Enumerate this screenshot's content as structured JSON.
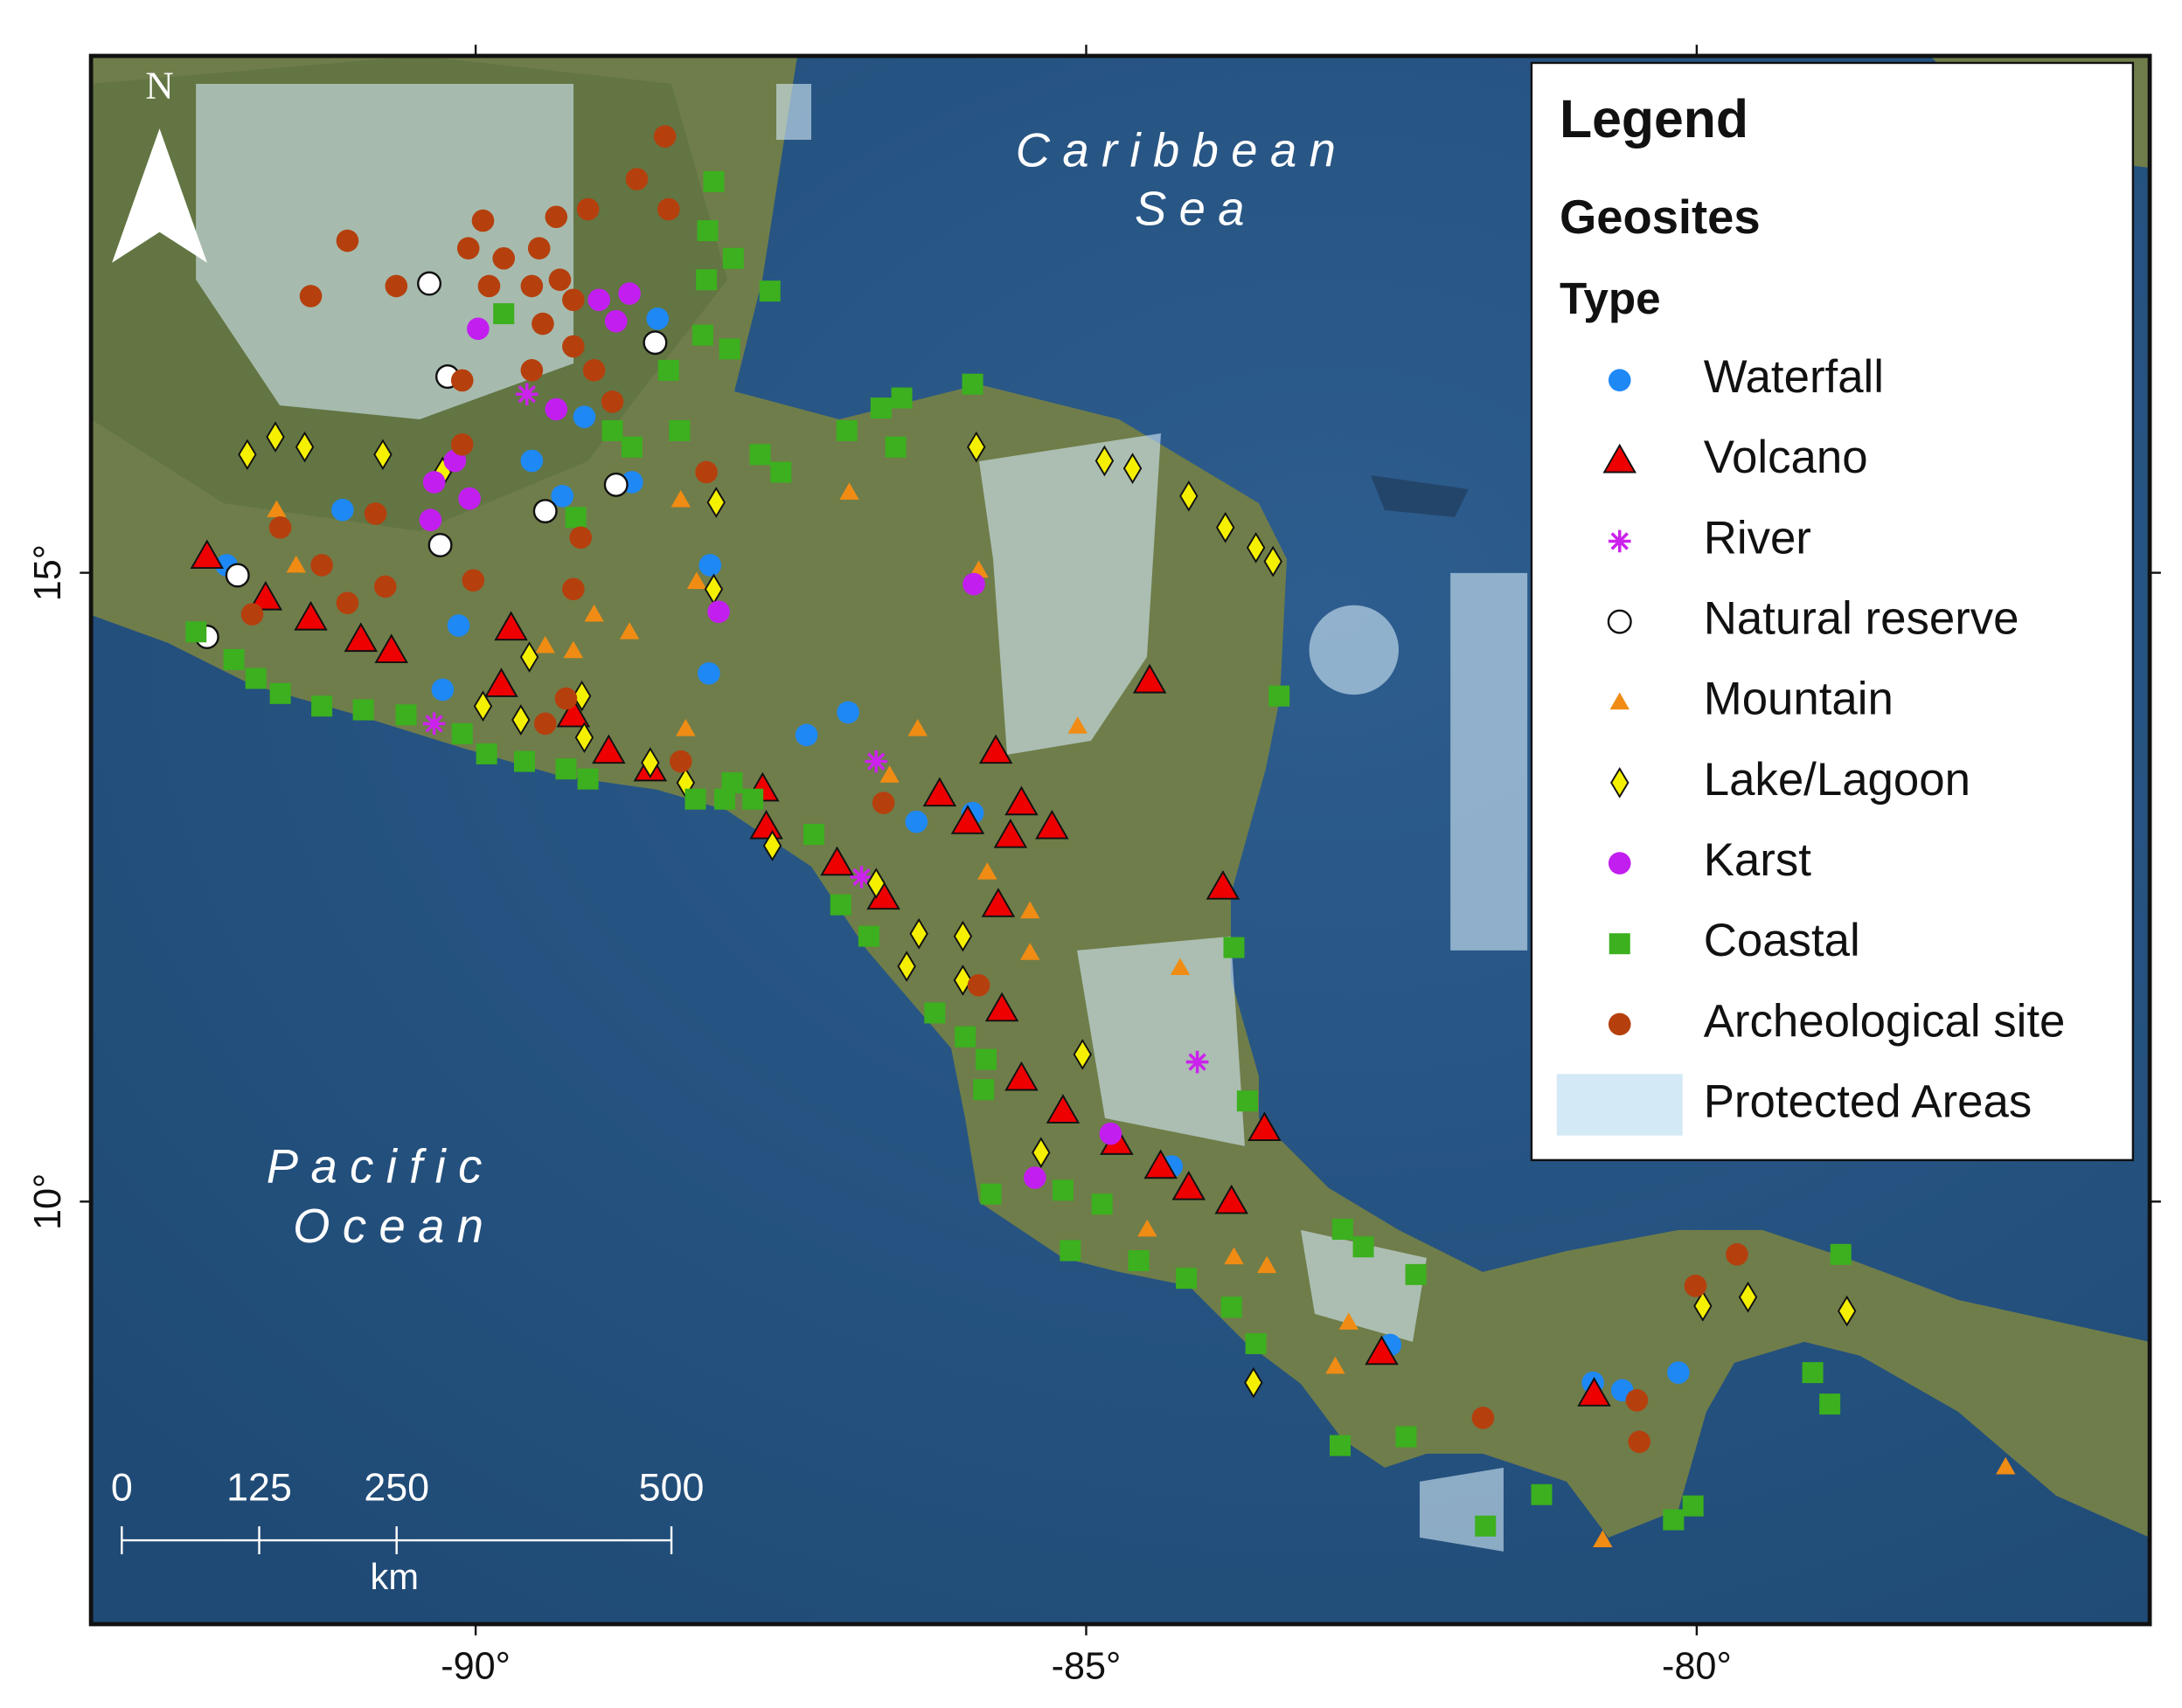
{
  "map": {
    "xlim": [
      -93.15,
      -76.29
    ],
    "ylim": [
      6.64,
      19.11
    ],
    "xticks": [
      {
        "value": -90,
        "label": "-90°"
      },
      {
        "value": -85,
        "label": "-85°"
      },
      {
        "value": -80,
        "label": "-80°"
      }
    ],
    "yticks": [
      {
        "value": 10,
        "label": "10°"
      },
      {
        "value": 15,
        "label": "15°"
      }
    ],
    "north": "N",
    "ocean_labels": [
      {
        "lines": [
          "Caribbean",
          "Sea"
        ]
      },
      {
        "lines": [
          "Pacific",
          "Ocean"
        ]
      }
    ],
    "legend": {
      "title": "Legend",
      "subtitle": "Geosites",
      "group": "Type"
    },
    "protected_areas": {
      "name": "Protected Areas",
      "color": "#d3e9f6"
    },
    "scale_bar": {
      "unit": "km",
      "ticks": [
        {
          "value": 0,
          "label": "0"
        },
        {
          "value": 125,
          "label": "125"
        },
        {
          "value": 250,
          "label": "250"
        },
        {
          "value": 500,
          "label": "500"
        }
      ]
    },
    "series": [
      {
        "name": "Waterfall",
        "marker": "circle",
        "color": "#1e88f5",
        "x": [
          -92.04,
          -91.09,
          -89.54,
          -89.29,
          -90.14,
          -90.27,
          -89.11,
          -88.51,
          -88.72,
          -88.08,
          -88.09,
          -87.29,
          -86.95,
          -86.39,
          -85.93,
          -84.3,
          -82.51,
          -80.85,
          -80.61,
          -80.15
        ],
        "y": [
          15.06,
          15.5,
          15.89,
          15.61,
          14.58,
          14.07,
          16.24,
          17.02,
          15.72,
          15.06,
          14.2,
          13.71,
          13.89,
          13.02,
          13.09,
          10.28,
          8.86,
          8.56,
          8.5,
          8.64
        ]
      },
      {
        "name": "Volcano",
        "marker": "triangle",
        "color": "#ee0000",
        "x": [
          -92.2,
          -91.72,
          -91.35,
          -90.94,
          -90.69,
          -89.71,
          -89.79,
          -89.2,
          -88.91,
          -88.57,
          -87.65,
          -87.62,
          -87.04,
          -86.66,
          -86.2,
          -85.97,
          -85.74,
          -85.53,
          -85.28,
          -85.62,
          -85.72,
          -85.69,
          -85.53,
          -85.19,
          -84.75,
          -84.39,
          -84.16,
          -83.81,
          -83.54,
          -83.88,
          -84.48,
          -82.58,
          -80.84
        ],
        "y": [
          15.13,
          14.8,
          14.64,
          14.47,
          14.38,
          14.56,
          14.11,
          13.87,
          13.58,
          13.44,
          13.28,
          12.98,
          12.69,
          12.42,
          13.24,
          13.02,
          13.58,
          13.17,
          12.98,
          12.91,
          12.36,
          11.53,
          10.98,
          10.72,
          10.47,
          10.28,
          10.11,
          10.0,
          10.58,
          12.5,
          14.14,
          8.8,
          8.47
        ]
      },
      {
        "name": "River",
        "marker": "star",
        "color": "#cc22ee",
        "x": [
          -89.58,
          -90.34,
          -86.72,
          -86.84,
          -84.09
        ],
        "y": [
          16.42,
          13.8,
          13.5,
          12.58,
          11.11
        ]
      },
      {
        "name": "Natural reserve",
        "marker": "ring",
        "color": "#ffffff",
        "x": [
          -92.2,
          -91.95,
          -90.38,
          -90.23,
          -90.29,
          -89.43,
          -88.85,
          -88.53
        ],
        "y": [
          14.49,
          14.98,
          17.3,
          16.56,
          15.22,
          15.49,
          15.7,
          16.83
        ]
      },
      {
        "name": "Mountain",
        "marker": "small-triangle",
        "color": "#f08c14",
        "x": [
          -91.63,
          -91.47,
          -89.43,
          -89.2,
          -89.03,
          -88.74,
          -88.28,
          -88.19,
          -88.32,
          -86.94,
          -86.61,
          -86.38,
          -85.81,
          -85.46,
          -85.46,
          -85.07,
          -84.23,
          -84.5,
          -83.79,
          -83.52,
          -82.85,
          -82.96,
          -80.77,
          -77.47,
          -85.88
        ],
        "y": [
          15.5,
          15.06,
          14.42,
          14.38,
          14.67,
          14.53,
          13.76,
          14.93,
          15.58,
          15.64,
          13.39,
          13.76,
          12.62,
          12.31,
          11.98,
          13.78,
          11.86,
          9.78,
          9.56,
          9.49,
          9.04,
          8.69,
          7.31,
          7.89,
          15.02
        ]
      },
      {
        "name": "Lake/Lagoon",
        "marker": "diamond",
        "color": "#f5f000",
        "x": [
          -91.87,
          -91.64,
          -91.4,
          -90.76,
          -90.27,
          -89.56,
          -89.63,
          -89.94,
          -89.13,
          -89.11,
          -88.57,
          -88.28,
          -88.03,
          -88.05,
          -87.57,
          -86.72,
          -86.37,
          -86.47,
          -86.01,
          -86.01,
          -85.9,
          -84.85,
          -84.62,
          -84.16,
          -83.86,
          -83.61,
          -83.47,
          -85.03,
          -85.37,
          -83.63,
          -79.95,
          -79.58,
          -78.77
        ],
        "y": [
          15.94,
          16.08,
          16.0,
          15.94,
          15.8,
          14.33,
          13.83,
          13.94,
          14.02,
          13.69,
          13.49,
          13.33,
          15.56,
          14.87,
          12.83,
          12.53,
          12.13,
          11.87,
          12.11,
          11.76,
          16.0,
          15.89,
          15.83,
          15.61,
          15.36,
          15.2,
          15.09,
          11.17,
          10.39,
          8.56,
          9.17,
          9.24,
          9.13
        ]
      },
      {
        "name": "Karst",
        "marker": "circle",
        "color": "#c21ef0",
        "x": [
          -89.98,
          -90.34,
          -90.17,
          -90.05,
          -89.34,
          -88.99,
          -88.74,
          -88.85,
          -88.01,
          -85.92,
          -84.8,
          -85.42,
          -90.37
        ],
        "y": [
          16.94,
          15.72,
          15.89,
          15.59,
          16.3,
          17.17,
          17.22,
          17.0,
          14.69,
          14.91,
          10.54,
          10.19,
          15.42
        ]
      },
      {
        "name": "Coastal",
        "marker": "square",
        "color": "#3cb01e",
        "x": [
          -92.29,
          -91.98,
          -91.8,
          -91.6,
          -91.26,
          -90.92,
          -90.57,
          -90.11,
          -89.91,
          -89.6,
          -89.26,
          -89.08,
          -88.2,
          -87.96,
          -87.73,
          -87.9,
          -87.23,
          -87.01,
          -86.78,
          -86.24,
          -85.99,
          -85.82,
          -85.84,
          -85.78,
          -85.19,
          -84.87,
          -85.13,
          -84.57,
          -84.18,
          -83.81,
          -83.61,
          -83.68,
          -83.79,
          -83.42,
          -82.9,
          -82.73,
          -82.3,
          -82.38,
          -82.92,
          -81.73,
          -81.27,
          -80.19,
          -80.03,
          -79.05,
          -78.91,
          -78.82,
          -88.05,
          -88.1,
          -88.11,
          -88.14,
          -87.89,
          -87.59,
          -87.92,
          -88.42,
          -88.33,
          -88.88,
          -88.72,
          -89.18,
          -89.77,
          -86.96,
          -86.68,
          -86.51,
          -86.56,
          -85.93,
          -87.67,
          -87.5
        ],
        "y": [
          14.53,
          14.31,
          14.16,
          14.04,
          13.94,
          13.91,
          13.87,
          13.72,
          13.56,
          13.5,
          13.44,
          13.36,
          13.2,
          13.2,
          13.2,
          13.33,
          12.92,
          12.36,
          12.11,
          11.5,
          11.31,
          11.13,
          10.89,
          10.06,
          10.09,
          9.98,
          9.61,
          9.53,
          9.39,
          9.16,
          8.87,
          10.8,
          12.02,
          14.02,
          9.78,
          9.64,
          9.42,
          8.13,
          8.06,
          7.42,
          7.67,
          7.47,
          7.58,
          8.64,
          8.39,
          9.58,
          18.11,
          17.72,
          17.33,
          16.89,
          17.5,
          17.24,
          16.78,
          16.61,
          16.13,
          16.13,
          16.0,
          15.44,
          17.06,
          16.13,
          16.31,
          16.39,
          16.0,
          16.5,
          15.94,
          15.8
        ]
      },
      {
        "name": "Archeological site",
        "marker": "circle",
        "color": "#b5400e",
        "x": [
          -88.45,
          -88.68,
          -88.42,
          -89.08,
          -89.34,
          -89.94,
          -90.06,
          -89.77,
          -89.48,
          -91.05,
          -91.35,
          -90.65,
          -89.89,
          -89.54,
          -89.31,
          -89.2,
          -89.45,
          -89.2,
          -89.54,
          -90.11,
          -90.11,
          -89.03,
          -88.88,
          -89.14,
          -89.2,
          -90.02,
          -90.74,
          -91.05,
          -91.26,
          -91.6,
          -90.82,
          -91.83,
          -89.26,
          -89.43,
          -88.32,
          -86.66,
          -85.88,
          -81.75,
          -80.49,
          -80.47,
          -80.01,
          -79.67,
          -88.11
        ],
        "y": [
          18.47,
          18.13,
          17.89,
          17.89,
          17.83,
          17.8,
          17.58,
          17.5,
          17.58,
          17.64,
          17.2,
          17.28,
          17.28,
          17.28,
          17.33,
          17.17,
          16.98,
          16.8,
          16.61,
          16.53,
          16.02,
          16.61,
          16.36,
          15.28,
          14.87,
          14.94,
          14.89,
          14.76,
          15.06,
          15.36,
          15.47,
          14.67,
          14.0,
          13.8,
          13.5,
          13.17,
          11.72,
          8.28,
          8.42,
          8.09,
          9.33,
          9.58,
          15.8
        ]
      }
    ]
  }
}
